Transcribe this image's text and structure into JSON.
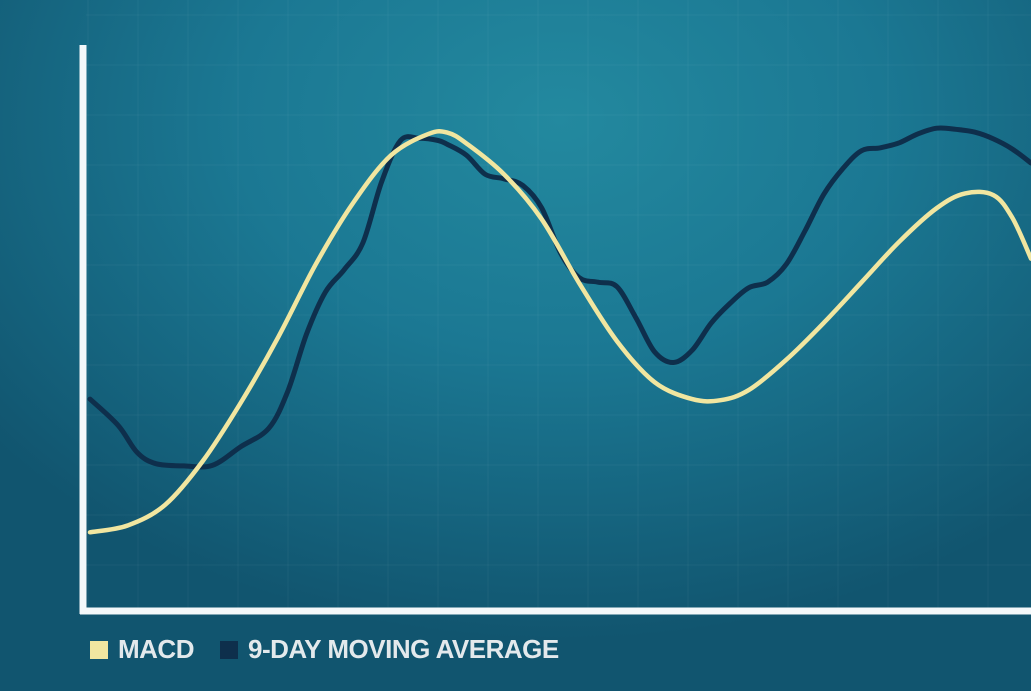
{
  "chart_data": {
    "type": "line",
    "title": "",
    "xlabel": "",
    "ylabel": "",
    "grid": true,
    "legend_position": "bottom-left",
    "xlim": [
      0,
      100
    ],
    "ylim": [
      0,
      100
    ],
    "series": [
      {
        "name": "MACD",
        "color": "#f1e6a0",
        "x": [
          0,
          4,
          8,
          12,
          16,
          20,
          24,
          28,
          32,
          36,
          38,
          40,
          44,
          48,
          52,
          56,
          60,
          64,
          67,
          70,
          74,
          78,
          82,
          86,
          90,
          93,
          96,
          98,
          100
        ],
        "y": [
          13.3,
          14.5,
          18.2,
          26,
          36.3,
          48,
          61,
          72,
          80.4,
          84.2,
          84.4,
          82.5,
          77,
          69,
          57.6,
          47.3,
          40,
          37,
          36.8,
          38.6,
          44,
          50.6,
          57.8,
          65,
          71,
          73.6,
          73.3,
          69.3,
          62
        ]
      },
      {
        "name": "9-DAY MOVING AVERAGE",
        "color": "#0e2f4c",
        "x": [
          0,
          3,
          5,
          7,
          10,
          13,
          16,
          19,
          21,
          23,
          25,
          27,
          29,
          31,
          33,
          35,
          37,
          38,
          40,
          42,
          44,
          46,
          48,
          50,
          52,
          54,
          56,
          58,
          60,
          62,
          64,
          66,
          68,
          70,
          72,
          74,
          76,
          78,
          80,
          82,
          84,
          86,
          88,
          90,
          92,
          94,
          96,
          98,
          100
        ],
        "y": [
          37,
          32.3,
          27.5,
          25.5,
          25.1,
          25.2,
          28.5,
          31.8,
          38.3,
          48.5,
          56,
          60,
          64.8,
          75.7,
          83,
          83.4,
          83,
          82.3,
          80.4,
          77,
          76.2,
          75,
          71,
          63,
          58.6,
          57.8,
          57,
          51.5,
          45.4,
          43.5,
          45.7,
          50.5,
          54,
          56.8,
          57.8,
          61,
          67,
          73.5,
          78,
          81.2,
          81.7,
          82.6,
          84.2,
          85.2,
          85,
          84.5,
          83.3,
          81.5,
          79
        ]
      }
    ]
  },
  "legend": {
    "items": [
      {
        "label": "MACD",
        "color": "#f1e6a0"
      },
      {
        "label": "9-DAY MOVING AVERAGE",
        "color": "#0e2f4c"
      }
    ]
  }
}
